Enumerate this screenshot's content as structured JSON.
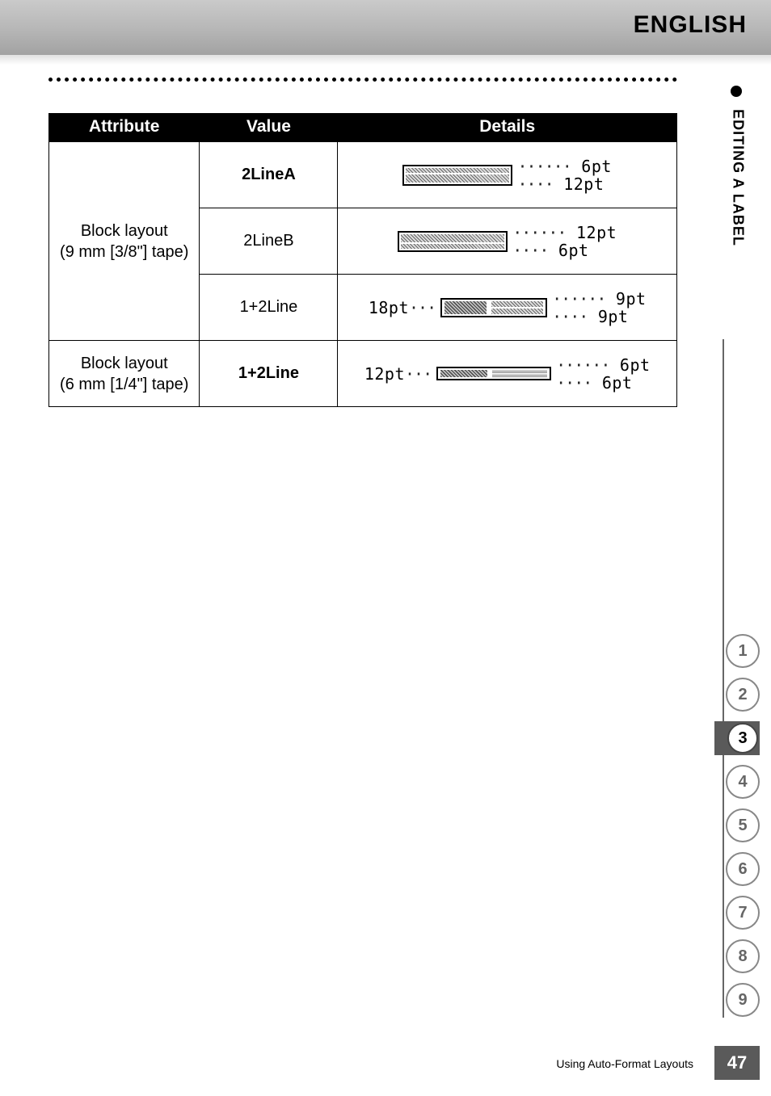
{
  "header": {
    "language": "ENGLISH"
  },
  "side": {
    "section_label": "EDITING A LABEL"
  },
  "table": {
    "columns": [
      "Attribute",
      "Value",
      "Details"
    ],
    "col_widths_pct": [
      24,
      22,
      54
    ],
    "rows": [
      {
        "attribute": "Block layout\n(9 mm [3/8\"] tape)",
        "attribute_rowspan": 3,
        "value": "2LineA",
        "value_bold": true,
        "detail_type": "2line",
        "top_pt": "6pt",
        "bottom_pt": "12pt"
      },
      {
        "value": "2LineB",
        "value_bold": false,
        "detail_type": "2line",
        "top_pt": "12pt",
        "bottom_pt": "6pt"
      },
      {
        "value": "1+2Line",
        "value_bold": false,
        "detail_type": "1+2",
        "left_pt": "18pt",
        "top_pt": "9pt",
        "bottom_pt": "9pt"
      },
      {
        "attribute": "Block layout\n(6 mm [1/4\"] tape)",
        "attribute_rowspan": 1,
        "value": "1+2Line",
        "value_bold": true,
        "detail_type": "1+2b",
        "left_pt": "12pt",
        "top_pt": "6pt",
        "bottom_pt": "6pt"
      }
    ]
  },
  "tabs": {
    "items": [
      "1",
      "2",
      "3",
      "4",
      "5",
      "6",
      "7",
      "8",
      "9"
    ],
    "active_index": 2
  },
  "footer": {
    "text": "Using Auto-Format Layouts",
    "page_number": "47"
  },
  "colors": {
    "header_gradient_top": "#cacaca",
    "header_gradient_bottom": "#a2a2a2",
    "table_header_bg": "#000000",
    "table_header_fg": "#ffffff",
    "tab_active_bg": "#5a5a5a",
    "tab_border": "#888888",
    "page_bg": "#ffffff"
  },
  "typography": {
    "english_label_fontsize_pt": 22,
    "th_fontsize_pt": 16,
    "td_fontsize_pt": 15,
    "side_label_fontsize_pt": 14,
    "footer_fontsize_pt": 10,
    "diagram_font": "monospace"
  }
}
